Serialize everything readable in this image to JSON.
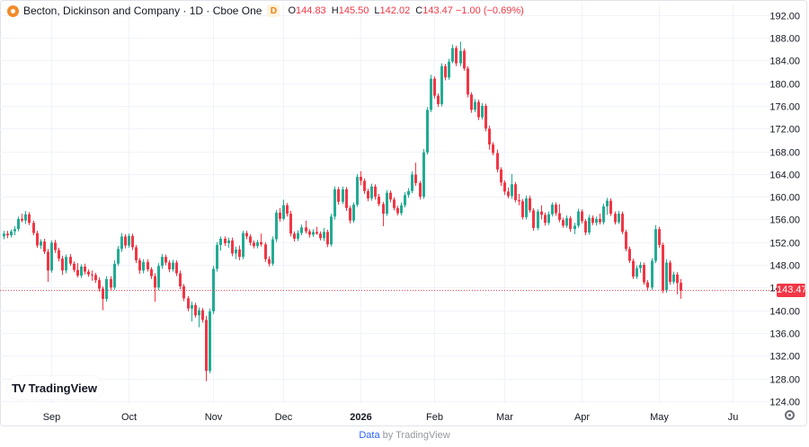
{
  "legend": {
    "title": "Becton, Dickinson and Company · 1D · Cboe One",
    "badge": "D",
    "o_label": "O",
    "o_value": "144.83",
    "h_label": "H",
    "h_value": "145.50",
    "l_label": "L",
    "l_value": "142.02",
    "c_label": "C",
    "c_value": "143.47",
    "change": "−1.00 (−0.69%)"
  },
  "colors": {
    "up": "#22ab94",
    "down": "#f23645",
    "grid": "#f0f3fa",
    "axis_text": "#131722"
  },
  "logo": {
    "mark": "TV",
    "text": "TradingView"
  },
  "footer": {
    "link": "Data",
    "by": "by TradingView"
  },
  "icons": {
    "settings": "gear-icon"
  },
  "chart_data": {
    "type": "candlestick",
    "title": "Becton, Dickinson and Company · 1D · Cboe One",
    "ylim": [
      122,
      194
    ],
    "y_ticks": [
      124,
      128,
      132,
      136,
      140,
      144,
      148,
      152,
      156,
      160,
      164,
      168,
      172,
      176,
      180,
      184,
      188,
      192
    ],
    "y_tick_labels": [
      "124.00",
      "128.00",
      "132.00",
      "136.00",
      "140.00",
      "144.00",
      "148.00",
      "152.00",
      "156.00",
      "160.00",
      "164.00",
      "168.00",
      "172.00",
      "176.00",
      "180.00",
      "184.00",
      "188.00",
      "192.00"
    ],
    "x_ticks": [
      {
        "index": 13,
        "label": "Sep",
        "bold": false
      },
      {
        "index": 34,
        "label": "Oct",
        "bold": false
      },
      {
        "index": 57,
        "label": "Nov",
        "bold": false
      },
      {
        "index": 76,
        "label": "Dec",
        "bold": false
      },
      {
        "index": 97,
        "label": "2026",
        "bold": true
      },
      {
        "index": 117,
        "label": "Feb",
        "bold": false
      },
      {
        "index": 136,
        "label": "Mar",
        "bold": false
      },
      {
        "index": 157,
        "label": "Apr",
        "bold": false
      },
      {
        "index": 178,
        "label": "May",
        "bold": false
      },
      {
        "index": 198,
        "label": "Ju",
        "bold": false
      }
    ],
    "last_price": 143.47,
    "last_price_label": "143.47",
    "grid": true,
    "candles": [
      [
        153,
        154,
        152.5,
        153.5
      ],
      [
        153.5,
        154,
        152.7,
        153.2
      ],
      [
        153.2,
        154.2,
        152.8,
        153.9
      ],
      [
        153.9,
        154.8,
        153.2,
        154.3
      ],
      [
        154.3,
        156.5,
        153.9,
        156.1
      ],
      [
        156.1,
        157,
        155.5,
        155.8
      ],
      [
        155.8,
        157.5,
        155.2,
        156.9
      ],
      [
        156.9,
        157.3,
        155,
        155.4
      ],
      [
        155.4,
        155.8,
        153.2,
        153.6
      ],
      [
        153.6,
        154,
        151,
        151.4
      ],
      [
        151.4,
        152.5,
        150.8,
        152.1
      ],
      [
        152.1,
        152.6,
        149.9,
        150.3
      ],
      [
        150.3,
        150.8,
        145,
        147
      ],
      [
        147,
        152.3,
        146.6,
        151.9
      ],
      [
        151.9,
        152.4,
        150.1,
        150.6
      ],
      [
        150.6,
        151,
        148.6,
        149.1
      ],
      [
        149.1,
        149.6,
        146.2,
        147
      ],
      [
        147,
        149.8,
        146.5,
        149.4
      ],
      [
        149.4,
        149.9,
        147.8,
        148.2
      ],
      [
        148.2,
        148.6,
        146.7,
        147.1
      ],
      [
        147.1,
        148.3,
        145.8,
        146.1
      ],
      [
        146.1,
        148.1,
        145.7,
        147.7
      ],
      [
        147.7,
        148.2,
        146.3,
        146.8
      ],
      [
        146.8,
        147.2,
        145.9,
        146.3
      ],
      [
        146.3,
        147,
        145.2,
        146.2
      ],
      [
        146.2,
        146.6,
        144.8,
        145.3
      ],
      [
        145.3,
        145.8,
        143.3,
        143.8
      ],
      [
        143.8,
        144.2,
        140,
        142
      ],
      [
        142,
        146,
        141.5,
        145.5
      ],
      [
        145.5,
        146,
        143.5,
        144
      ],
      [
        144,
        148.8,
        143.6,
        148.2
      ],
      [
        148.2,
        151.3,
        147.8,
        150.8
      ],
      [
        150.8,
        153.6,
        150.3,
        153
      ],
      [
        153,
        153.4,
        150.9,
        151.4
      ],
      [
        151.4,
        153.5,
        151,
        153.1
      ],
      [
        153.1,
        153.5,
        150.6,
        151.1
      ],
      [
        151.1,
        151.5,
        148.3,
        148.8
      ],
      [
        148.8,
        149.2,
        146.4,
        147
      ],
      [
        147,
        149,
        146.5,
        148.5
      ],
      [
        148.5,
        149,
        146.8,
        147.2
      ],
      [
        147.2,
        147.6,
        145.5,
        146
      ],
      [
        146,
        146.5,
        141.5,
        144
      ],
      [
        144,
        148.3,
        143.5,
        147.8
      ],
      [
        147.8,
        149.9,
        147.3,
        149.4
      ],
      [
        149.4,
        149.8,
        147.9,
        148.4
      ],
      [
        148.4,
        148.8,
        146.7,
        147.2
      ],
      [
        147.2,
        148.9,
        146.8,
        148.4
      ],
      [
        148.4,
        148.8,
        146,
        146.5
      ],
      [
        146.5,
        147,
        143.7,
        144.2
      ],
      [
        144.2,
        144.6,
        141.6,
        142.1
      ],
      [
        142.1,
        142.5,
        139.8,
        140.3
      ],
      [
        140.3,
        141.5,
        138,
        140.9
      ],
      [
        140.9,
        141.3,
        138.7,
        139.1
      ],
      [
        139.1,
        140.5,
        137,
        140
      ],
      [
        140,
        140.4,
        137.8,
        138.3
      ],
      [
        138.3,
        139,
        127.5,
        129.3
      ],
      [
        129.3,
        140.3,
        128.9,
        139.8
      ],
      [
        139.8,
        147.8,
        139.3,
        147.3
      ],
      [
        147.3,
        152,
        146.8,
        151.5
      ],
      [
        151.5,
        153,
        150.5,
        152.6
      ],
      [
        152.6,
        153,
        151.3,
        151.8
      ],
      [
        151.8,
        152.8,
        151,
        152.3
      ],
      [
        152.3,
        152.8,
        149.5,
        150
      ],
      [
        150,
        151.2,
        149,
        150.7
      ],
      [
        150.7,
        151.4,
        148.8,
        149.4
      ],
      [
        149.4,
        154,
        149,
        153.6
      ],
      [
        153.6,
        154,
        152.5,
        153
      ],
      [
        153,
        153.4,
        151.4,
        151.9
      ],
      [
        151.9,
        152.3,
        150.9,
        151.3
      ],
      [
        151.3,
        152.4,
        150.9,
        152
      ],
      [
        152,
        153.5,
        151.2,
        151.6
      ],
      [
        151.6,
        152,
        148.5,
        149
      ],
      [
        149,
        149.5,
        147.7,
        148.2
      ],
      [
        148.2,
        153,
        147.8,
        152.5
      ],
      [
        152.5,
        157.7,
        152,
        157.2
      ],
      [
        157.2,
        158,
        155.6,
        156.1
      ],
      [
        156.1,
        159.5,
        155.8,
        158.5
      ],
      [
        158.5,
        158.9,
        156.5,
        157
      ],
      [
        157,
        157.5,
        153,
        153.5
      ],
      [
        153.5,
        153.9,
        152.1,
        152.6
      ],
      [
        152.6,
        154.1,
        152.2,
        153.6
      ],
      [
        153.6,
        155.1,
        153.2,
        154.6
      ],
      [
        154.6,
        155.8,
        153.5,
        153.9
      ],
      [
        153.9,
        154.3,
        152.8,
        153.3
      ],
      [
        153.3,
        154.3,
        152.9,
        153.8
      ],
      [
        153.8,
        154.7,
        153.3,
        153.5
      ],
      [
        153.5,
        153.9,
        152.3,
        152.7
      ],
      [
        152.7,
        154.5,
        152.2,
        153.8
      ],
      [
        153.8,
        154.2,
        151.1,
        151.6
      ],
      [
        151.6,
        157,
        151.2,
        156.5
      ],
      [
        156.5,
        161.8,
        156,
        161.3
      ],
      [
        161.3,
        161.7,
        158.6,
        159.1
      ],
      [
        159.1,
        161.8,
        158.7,
        161.3
      ],
      [
        161.3,
        161.7,
        157.5,
        158
      ],
      [
        158,
        158.4,
        155.3,
        155.8
      ],
      [
        155.8,
        159,
        155.4,
        158.6
      ],
      [
        158.6,
        164,
        158.2,
        163.5
      ],
      [
        163.5,
        164.5,
        162,
        162.8
      ],
      [
        162.8,
        163.2,
        160.5,
        161
      ],
      [
        161,
        161.4,
        159.2,
        159.7
      ],
      [
        159.7,
        162.3,
        159.3,
        161.8
      ],
      [
        161.8,
        162.2,
        159.5,
        160
      ],
      [
        160,
        160.5,
        158.3,
        158.7
      ],
      [
        158.7,
        159.1,
        154.8,
        157
      ],
      [
        157,
        161.2,
        156.6,
        160.7
      ],
      [
        160.7,
        161.1,
        159,
        159.5
      ],
      [
        159.5,
        159.9,
        157.6,
        158
      ],
      [
        158,
        158.4,
        156.7,
        157.1
      ],
      [
        157.1,
        159,
        156.7,
        158.5
      ],
      [
        158.5,
        160.8,
        158.1,
        160.3
      ],
      [
        160.3,
        161.5,
        159.8,
        161
      ],
      [
        161,
        164.5,
        160.6,
        163.9
      ],
      [
        163.9,
        166,
        161.9,
        162.4
      ],
      [
        162.4,
        162.8,
        159.5,
        160
      ],
      [
        160,
        168.4,
        159.6,
        167.8
      ],
      [
        167.8,
        175.8,
        167.4,
        175.3
      ],
      [
        175.3,
        181.5,
        174.9,
        180.8
      ],
      [
        180.8,
        181.2,
        177.3,
        177.8
      ],
      [
        177.8,
        178.2,
        175.8,
        176.3
      ],
      [
        176.3,
        183.5,
        175.9,
        183
      ],
      [
        183,
        183.4,
        180.5,
        181
      ],
      [
        181,
        184.3,
        180.6,
        183.8
      ],
      [
        183.8,
        186.8,
        183.5,
        186.2
      ],
      [
        186.2,
        186.6,
        183,
        183.5
      ],
      [
        183.5,
        187.3,
        183,
        185.7
      ],
      [
        185.7,
        186.1,
        182.2,
        182.6
      ],
      [
        182.6,
        183,
        177.5,
        178
      ],
      [
        178,
        178.4,
        174.8,
        175.3
      ],
      [
        175.3,
        177.2,
        174.9,
        176.7
      ],
      [
        176.7,
        177.1,
        173.5,
        174
      ],
      [
        174,
        176.5,
        173.6,
        176
      ],
      [
        176,
        176.4,
        171.5,
        172
      ],
      [
        172,
        172.5,
        168.3,
        169.2
      ],
      [
        169.2,
        169.6,
        167.3,
        167.7
      ],
      [
        167.7,
        168.3,
        164.3,
        164.8
      ],
      [
        164.8,
        165.2,
        161.9,
        162.5
      ],
      [
        162.5,
        162.9,
        160.3,
        160.9
      ],
      [
        160.9,
        161.6,
        159.7,
        160.1
      ],
      [
        160.1,
        164,
        159.6,
        162.2
      ],
      [
        162.2,
        162.6,
        159,
        159.4
      ],
      [
        159.4,
        160.5,
        158.5,
        159.2
      ],
      [
        159.2,
        159.6,
        156,
        156.4
      ],
      [
        156.4,
        160.2,
        156,
        159.7
      ],
      [
        159.7,
        160.2,
        157.2,
        157.6
      ],
      [
        157.6,
        158,
        154,
        154.5
      ],
      [
        154.5,
        157.8,
        154.1,
        157.4
      ],
      [
        157.4,
        158.5,
        156,
        156.8
      ],
      [
        156.8,
        157.2,
        154.9,
        155.4
      ],
      [
        155.4,
        157.4,
        155,
        156.9
      ],
      [
        156.9,
        159,
        156.5,
        158.6
      ],
      [
        158.6,
        159,
        156.6,
        157.1
      ],
      [
        157.1,
        158.7,
        155.5,
        155.9
      ],
      [
        155.9,
        156.3,
        154.5,
        154.9
      ],
      [
        154.9,
        156.7,
        154.5,
        156.2
      ],
      [
        156.2,
        156.6,
        153.8,
        154.3
      ],
      [
        154.3,
        155.4,
        153.4,
        154.9
      ],
      [
        154.9,
        157.9,
        154.5,
        157.4
      ],
      [
        157.4,
        157.8,
        155.3,
        155.7
      ],
      [
        155.7,
        156.1,
        153.2,
        153.7
      ],
      [
        153.7,
        156.8,
        153.3,
        156.3
      ],
      [
        156.3,
        156.7,
        155,
        155.4
      ],
      [
        155.4,
        156.5,
        154.9,
        156.1
      ],
      [
        156.1,
        157,
        155.1,
        155.5
      ],
      [
        155.5,
        158.8,
        155.1,
        158.3
      ],
      [
        158.3,
        159.8,
        156.8,
        159.3
      ],
      [
        159.3,
        159.7,
        156.6,
        157
      ],
      [
        157,
        157.4,
        155.1,
        155.5
      ],
      [
        155.5,
        157.5,
        155.2,
        157
      ],
      [
        157,
        157.4,
        153.4,
        153.8
      ],
      [
        153.8,
        154.2,
        150.4,
        150.8
      ],
      [
        150.8,
        151.2,
        148.3,
        148.7
      ],
      [
        148.7,
        149.1,
        145.5,
        145.9
      ],
      [
        145.9,
        147.9,
        145.5,
        147.4
      ],
      [
        147.4,
        148.5,
        146.6,
        148
      ],
      [
        148,
        148.4,
        144.5,
        144.9
      ],
      [
        144.9,
        145.3,
        143.5,
        144
      ],
      [
        144,
        149.2,
        143.6,
        148.7
      ],
      [
        148.7,
        155,
        148.3,
        154.3
      ],
      [
        154.3,
        154.7,
        151,
        151.5
      ],
      [
        151.5,
        151.9,
        143,
        143.5
      ],
      [
        143.5,
        149,
        143.1,
        148.4
      ],
      [
        148.4,
        148.8,
        144.5,
        145
      ],
      [
        145,
        146.8,
        144.6,
        146.3
      ],
      [
        146.3,
        146.7,
        142.8,
        144.8
      ],
      [
        144.83,
        145.5,
        142.02,
        143.47
      ]
    ]
  }
}
